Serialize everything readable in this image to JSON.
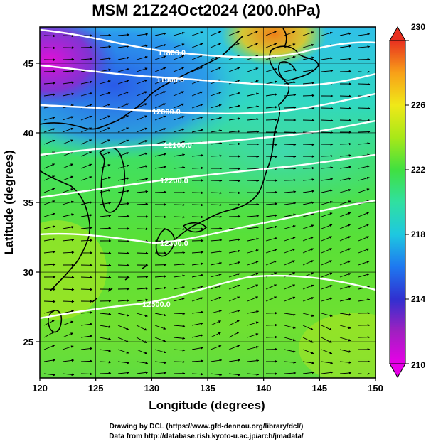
{
  "title": "MSM 21Z24Oct2024 (200.0hPa)",
  "map": {
    "xlabel": "Longitude (degrees)",
    "ylabel": "Latitude  (degrees)",
    "xlim": [
      120,
      150
    ],
    "ylim": [
      22.4,
      47.6
    ],
    "xticks": [
      "120",
      "125",
      "130",
      "135",
      "140",
      "145",
      "150"
    ],
    "yticks": [
      "25",
      "30",
      "35",
      "40",
      "45"
    ],
    "gridlines": true,
    "contour_labels": [
      "11800.0",
      "11900.0",
      "12000.0",
      "12100.0",
      "12200.0",
      "12300.0",
      "12500.0"
    ]
  },
  "colorbar": {
    "min": 210,
    "max": 230,
    "ticks": [
      "210",
      "214",
      "218",
      "222",
      "226",
      "230"
    ],
    "colors": [
      "#e800e8",
      "#a020c0",
      "#3030d0",
      "#1e78f0",
      "#1ec8e0",
      "#30e0a0",
      "#40e040",
      "#a8e818",
      "#f0e818",
      "#f8a018",
      "#e83020"
    ]
  },
  "credits": {
    "line1": "Drawing by DCL (https://www.gfd-dennou.org/library/dcl/)",
    "line2": "Data from http://database.rish.kyoto-u.ac.jp/arch/jmadata/"
  }
}
